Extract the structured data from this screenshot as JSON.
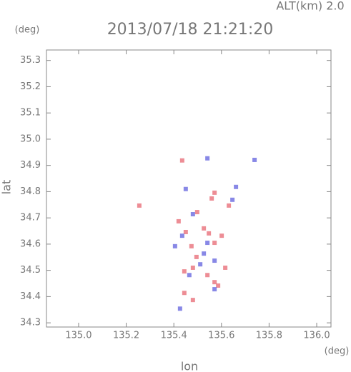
{
  "chart_data": {
    "type": "scatter",
    "title": "2013/07/18 21:21:20",
    "subtitle": "ALT(km) 2.0",
    "y_unit": "(deg)",
    "x_unit": "(deg)",
    "xlabel": "lon",
    "ylabel": "lat",
    "xlim": [
      134.865,
      136.06
    ],
    "ylim": [
      34.284,
      35.34
    ],
    "xticks": [
      {
        "value": 135,
        "label": "135.0"
      },
      135.2,
      135.4,
      135.6,
      135.8,
      {
        "value": 136,
        "label": "136.0"
      }
    ],
    "yticks": [
      34.3,
      34.4,
      34.5,
      34.6,
      34.7,
      34.8,
      34.9,
      {
        "value": 35,
        "label": "35.0"
      },
      35.1,
      35.2,
      35.3
    ],
    "series": [
      {
        "color": "#e8707a",
        "x": [
          135.435,
          135.571,
          135.559,
          135.498,
          135.547,
          135.45,
          135.474,
          135.571,
          135.444,
          135.571,
          135.586,
          135.48,
          135.444,
          135.616,
          135.255,
          135.631,
          135.42,
          135.526,
          135.601,
          135.495,
          135.541,
          135.48
        ],
        "values": [
          34.919,
          34.796,
          34.774,
          34.722,
          34.641,
          34.646,
          34.592,
          34.605,
          34.496,
          34.455,
          34.442,
          34.51,
          34.414,
          34.51,
          34.747,
          34.747,
          34.687,
          34.66,
          34.632,
          34.551,
          34.482,
          34.387
        ]
      },
      {
        "color": "#6a6ae0",
        "x": [
          135.661,
          135.739,
          135.45,
          135.48,
          135.435,
          135.526,
          135.511,
          135.571,
          135.465,
          135.426,
          135.541,
          135.405,
          135.541,
          135.571,
          135.646
        ],
        "values": [
          34.818,
          34.921,
          34.81,
          34.714,
          34.632,
          34.564,
          34.523,
          34.537,
          34.482,
          34.354,
          34.927,
          34.592,
          34.605,
          34.428,
          34.769
        ]
      }
    ]
  }
}
